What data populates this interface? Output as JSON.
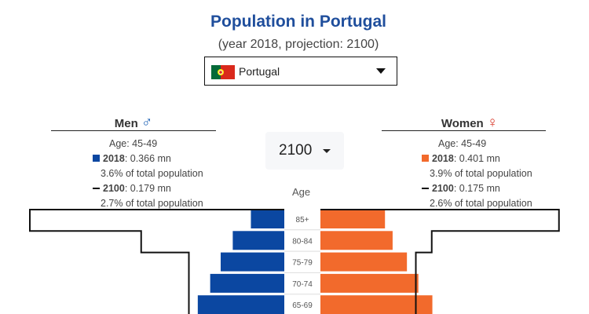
{
  "header": {
    "title": "Population in Portugal",
    "subtitle": "(year 2018, projection: 2100)"
  },
  "country_select": {
    "value": "Portugal",
    "flag": "portugal-flag"
  },
  "year_select": {
    "value": "2100"
  },
  "axis": {
    "age_label": "Age"
  },
  "men": {
    "label": "Men",
    "symbol": "♂",
    "age": "Age: 45-49",
    "y2018_label": "2018",
    "y2018_value": ": 0.366 mn",
    "y2018_share": "3.6% of total population",
    "y2100_label": "2100",
    "y2100_value": ": 0.179 mn",
    "y2100_share": "2.7% of total population"
  },
  "women": {
    "label": "Women",
    "symbol": "♀",
    "age": "Age: 45-49",
    "y2018_label": "2018",
    "y2018_value": ": 0.401 mn",
    "y2018_share": "3.9% of total population",
    "y2100_label": "2100",
    "y2100_value": ": 0.175 mn",
    "y2100_share": "2.6% of total population"
  },
  "colors": {
    "men": "#0b47a1",
    "women": "#f26a2c",
    "title": "#1f4e9c",
    "projection": "#111111"
  },
  "chart_data": {
    "type": "bar",
    "categories": [
      "85+",
      "80-84",
      "75-79",
      "70-74",
      "65-69"
    ],
    "series": [
      {
        "name": "Men",
        "values": [
          0.105,
          0.162,
          0.2,
          0.233,
          0.272
        ]
      },
      {
        "name": "Women",
        "values": [
          0.203,
          0.227,
          0.272,
          0.308,
          0.352
        ]
      }
    ],
    "projection_2100": {
      "men": [
        0.8,
        0.45,
        0.3,
        0.3,
        0.3
      ],
      "women": [
        0.75,
        0.35,
        0.3,
        0.3,
        0.3
      ]
    },
    "xlim": [
      0,
      0.8
    ]
  }
}
